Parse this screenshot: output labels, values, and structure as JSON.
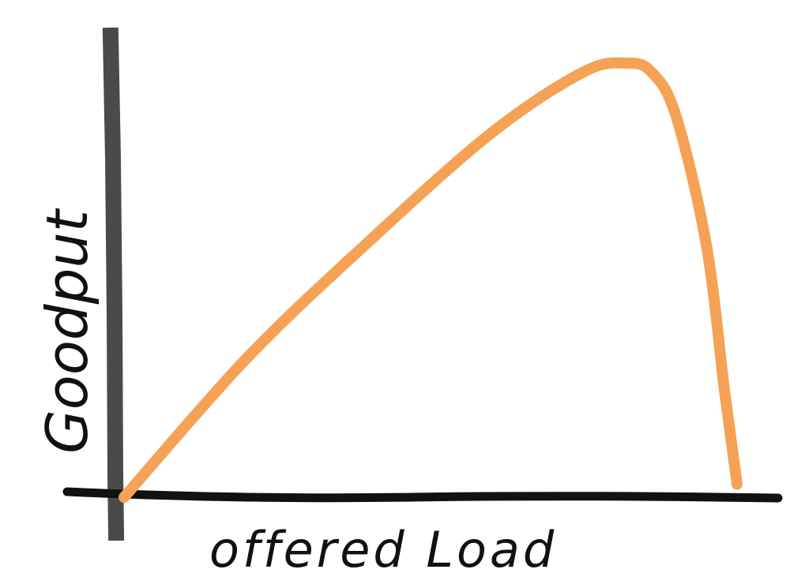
{
  "chart_data": {
    "type": "line",
    "title": "",
    "xlabel": "offered Load",
    "ylabel": "Goodput",
    "grid": false,
    "legend": "none",
    "series": [
      {
        "x": [
          0.0,
          0.2,
          0.4,
          0.6,
          0.75,
          0.82,
          0.86,
          0.9,
          0.95,
          0.98,
          1.0
        ],
        "values": [
          0.0,
          0.32,
          0.59,
          0.84,
          0.98,
          1.0,
          0.98,
          0.88,
          0.58,
          0.24,
          0.03
        ],
        "color": "#f5a256"
      }
    ],
    "xlim": [
      0,
      1
    ],
    "ylim": [
      0,
      1
    ],
    "axis_colors": {
      "y_axis": "#4a4a4a",
      "x_axis": "#111111"
    }
  }
}
